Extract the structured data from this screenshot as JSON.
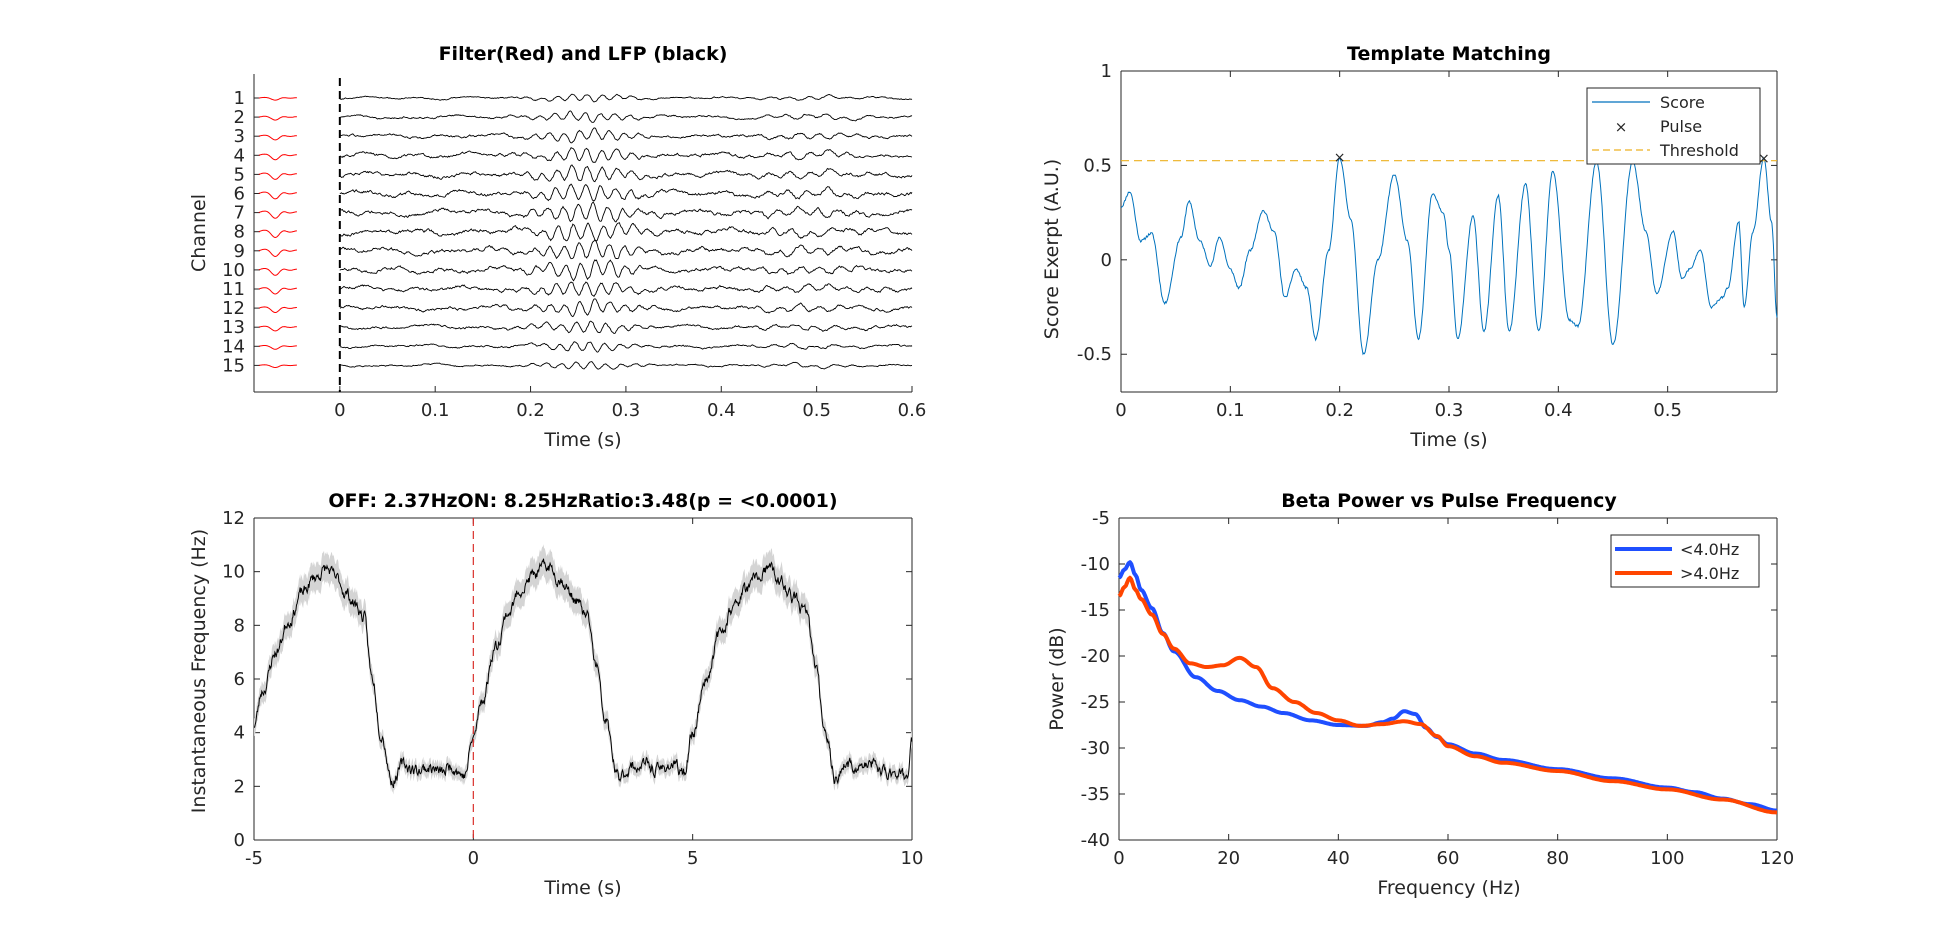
{
  "figure": {
    "background": "#ffffff",
    "axis_color": "#262626"
  },
  "chart_data": [
    {
      "id": "p1",
      "type": "line",
      "title": "Filter(Red) and LFP (black)",
      "xlabel": "Time (s)",
      "ylabel": "Channel",
      "xlim": [
        -0.09,
        0.6
      ],
      "xticks": [
        0,
        0.1,
        0.2,
        0.3,
        0.4,
        0.5,
        0.6
      ],
      "xtick_labels": [
        "0",
        "0.1",
        "0.2",
        "0.3",
        "0.4",
        "0.5",
        "0.6"
      ],
      "channels": [
        "1",
        "2",
        "3",
        "4",
        "5",
        "6",
        "7",
        "8",
        "9",
        "10",
        "11",
        "12",
        "13",
        "14",
        "15"
      ],
      "filter_color": "#ff0000",
      "lfp_color": "#000000",
      "stim_line_x": 0,
      "filter_span": [
        -0.085,
        -0.045
      ],
      "lfp_span": [
        0.0,
        0.6
      ],
      "grid": false
    },
    {
      "id": "p2",
      "type": "line",
      "title": "Template Matching",
      "xlabel": "Time (s)",
      "ylabel": "Score Exerpt (A.U.)",
      "xlim": [
        0,
        0.6
      ],
      "ylim": [
        -0.7,
        1
      ],
      "xticks": [
        0,
        0.1,
        0.2,
        0.3,
        0.4,
        0.5
      ],
      "xtick_labels": [
        "0",
        "0.1",
        "0.2",
        "0.3",
        "0.4",
        "0.5"
      ],
      "yticks": [
        -0.5,
        0,
        0.5,
        1
      ],
      "ytick_labels": [
        "-0.5",
        "0",
        "0.5",
        "1"
      ],
      "series": [
        {
          "name": "Score",
          "color": "#0072bd",
          "style": "line"
        },
        {
          "name": "Pulse",
          "color": "#ff0000",
          "style": "x-marker",
          "x": [
            0.2,
            0.588
          ],
          "y": [
            0.545,
            0.54
          ]
        },
        {
          "name": "Threshold",
          "color": "#edb120",
          "style": "dashed",
          "value": 0.525
        }
      ],
      "score_knots": [
        [
          0,
          0.28
        ],
        [
          0.008,
          0.36
        ],
        [
          0.018,
          0.1
        ],
        [
          0.028,
          0.14
        ],
        [
          0.04,
          -0.23
        ],
        [
          0.055,
          0.12
        ],
        [
          0.062,
          0.31
        ],
        [
          0.072,
          0.1
        ],
        [
          0.082,
          -0.03
        ],
        [
          0.09,
          0.12
        ],
        [
          0.1,
          -0.05
        ],
        [
          0.108,
          -0.15
        ],
        [
          0.118,
          0.05
        ],
        [
          0.13,
          0.26
        ],
        [
          0.14,
          0.15
        ],
        [
          0.15,
          -0.2
        ],
        [
          0.16,
          -0.05
        ],
        [
          0.17,
          -0.15
        ],
        [
          0.178,
          -0.42
        ],
        [
          0.19,
          0.05
        ],
        [
          0.2,
          0.54
        ],
        [
          0.21,
          0.22
        ],
        [
          0.222,
          -0.5
        ],
        [
          0.235,
          0.0
        ],
        [
          0.25,
          0.45
        ],
        [
          0.262,
          0.1
        ],
        [
          0.272,
          -0.42
        ],
        [
          0.285,
          0.35
        ],
        [
          0.295,
          0.25
        ],
        [
          0.3,
          0.05
        ],
        [
          0.308,
          -0.42
        ],
        [
          0.322,
          0.23
        ],
        [
          0.332,
          -0.38
        ],
        [
          0.345,
          0.34
        ],
        [
          0.355,
          -0.38
        ],
        [
          0.37,
          0.4
        ],
        [
          0.382,
          -0.38
        ],
        [
          0.395,
          0.47
        ],
        [
          0.41,
          -0.32
        ],
        [
          0.418,
          -0.35
        ],
        [
          0.435,
          0.52
        ],
        [
          0.45,
          -0.45
        ],
        [
          0.468,
          0.52
        ],
        [
          0.48,
          0.15
        ],
        [
          0.49,
          -0.18
        ],
        [
          0.505,
          0.15
        ],
        [
          0.513,
          -0.1
        ],
        [
          0.52,
          -0.05
        ],
        [
          0.53,
          0.05
        ],
        [
          0.54,
          -0.25
        ],
        [
          0.55,
          -0.2
        ],
        [
          0.555,
          -0.15
        ],
        [
          0.565,
          0.2
        ],
        [
          0.57,
          -0.25
        ],
        [
          0.578,
          0.15
        ],
        [
          0.588,
          0.54
        ],
        [
          0.595,
          0.2
        ],
        [
          0.6,
          -0.3
        ]
      ],
      "legend_position": "top-right",
      "grid": false
    },
    {
      "id": "p3",
      "type": "line",
      "title": "OFF: 2.37HzON: 8.25HzRatio:3.48(p = <0.0001)",
      "xlabel": "Time (s)",
      "ylabel": "Instantaneous Frequency (Hz)",
      "xlim": [
        -5,
        10
      ],
      "ylim": [
        0,
        12
      ],
      "xticks": [
        -5,
        0,
        5,
        10
      ],
      "xtick_labels": [
        "-5",
        "0",
        "5",
        "10"
      ],
      "yticks": [
        0,
        2,
        4,
        6,
        8,
        10,
        12
      ],
      "ytick_labels": [
        "0",
        "2",
        "4",
        "6",
        "8",
        "10",
        "12"
      ],
      "line_color": "#000000",
      "band_color": "#d4d4d4",
      "onset_line_x": 0,
      "onset_line_color": "#d9302b",
      "mean_knots": [
        [
          -5,
          4.3
        ],
        [
          -4.8,
          5.6
        ],
        [
          -4.5,
          7.0
        ],
        [
          -4.2,
          8.2
        ],
        [
          -3.9,
          9.2
        ],
        [
          -3.6,
          9.8
        ],
        [
          -3.35,
          10.1
        ],
        [
          -3.1,
          9.7
        ],
        [
          -2.9,
          9.2
        ],
        [
          -2.7,
          8.8
        ],
        [
          -2.5,
          8.3
        ],
        [
          -2.3,
          6.0
        ],
        [
          -2.1,
          4.0
        ],
        [
          -1.85,
          2.2
        ],
        [
          -1.6,
          2.8
        ],
        [
          -1.3,
          2.6
        ],
        [
          -1.0,
          2.7
        ],
        [
          -0.7,
          2.5
        ],
        [
          -0.5,
          2.8
        ],
        [
          -0.2,
          2.4
        ],
        [
          0,
          3.8
        ],
        [
          0.2,
          5.2
        ],
        [
          0.5,
          7.2
        ],
        [
          0.8,
          8.5
        ],
        [
          1.1,
          9.4
        ],
        [
          1.4,
          9.9
        ],
        [
          1.7,
          10.2
        ],
        [
          2.0,
          9.7
        ],
        [
          2.3,
          9.0
        ],
        [
          2.6,
          8.3
        ],
        [
          2.8,
          6.5
        ],
        [
          3.0,
          4.5
        ],
        [
          3.3,
          2.3
        ],
        [
          3.6,
          2.7
        ],
        [
          3.9,
          2.8
        ],
        [
          4.2,
          2.6
        ],
        [
          4.5,
          2.8
        ],
        [
          4.8,
          2.5
        ],
        [
          5.0,
          4.0
        ],
        [
          5.3,
          6.0
        ],
        [
          5.6,
          7.6
        ],
        [
          5.9,
          8.6
        ],
        [
          6.2,
          9.3
        ],
        [
          6.5,
          9.8
        ],
        [
          6.75,
          10.1
        ],
        [
          7.0,
          9.6
        ],
        [
          7.3,
          9.0
        ],
        [
          7.6,
          8.4
        ],
        [
          7.8,
          6.5
        ],
        [
          8.0,
          4.3
        ],
        [
          8.25,
          2.3
        ],
        [
          8.5,
          2.8
        ],
        [
          8.8,
          2.7
        ],
        [
          9.1,
          2.8
        ],
        [
          9.4,
          2.5
        ],
        [
          9.7,
          2.6
        ],
        [
          9.9,
          2.3
        ],
        [
          10.0,
          3.6
        ]
      ],
      "grid": false
    },
    {
      "id": "p4",
      "type": "line",
      "title": "Beta Power vs Pulse Frequency",
      "xlabel": "Frequency (Hz)",
      "ylabel": "Power (dB)",
      "xlim": [
        0,
        120
      ],
      "ylim": [
        -40,
        -5
      ],
      "xticks": [
        0,
        20,
        40,
        60,
        80,
        100,
        120
      ],
      "xtick_labels": [
        "0",
        "20",
        "40",
        "60",
        "80",
        "100",
        "120"
      ],
      "yticks": [
        -40,
        -35,
        -30,
        -25,
        -20,
        -15,
        -10,
        -5
      ],
      "ytick_labels": [
        "-40",
        "-35",
        "-30",
        "-25",
        "-20",
        "-15",
        "-10",
        "-5"
      ],
      "series": [
        {
          "name": "<4.0Hz",
          "color": "#1f4fff",
          "x": [
            0,
            1,
            2,
            3,
            4,
            6,
            8,
            10,
            14,
            18,
            22,
            26,
            30,
            35,
            40,
            45,
            48,
            50,
            52,
            54,
            56,
            58,
            60,
            65,
            70,
            80,
            90,
            100,
            105,
            110,
            115,
            120
          ],
          "y": [
            -11.5,
            -10.6,
            -9.8,
            -11.2,
            -12.8,
            -14.8,
            -17.5,
            -19.5,
            -22.3,
            -23.8,
            -24.8,
            -25.5,
            -26.2,
            -27.0,
            -27.5,
            -27.6,
            -27.2,
            -26.8,
            -26.0,
            -26.3,
            -27.8,
            -28.8,
            -29.6,
            -30.6,
            -31.3,
            -32.3,
            -33.3,
            -34.3,
            -34.8,
            -35.5,
            -36.1,
            -36.8
          ]
        },
        {
          "name": ">4.0Hz",
          "color": "#ff4500",
          "x": [
            0,
            1,
            2,
            3,
            4,
            6,
            8,
            10,
            13,
            16,
            19,
            22,
            25,
            28,
            32,
            36,
            40,
            44,
            48,
            52,
            55,
            58,
            60,
            65,
            70,
            80,
            90,
            100,
            110,
            120
          ],
          "y": [
            -13.5,
            -12.5,
            -11.5,
            -12.8,
            -13.8,
            -15.5,
            -17.6,
            -19.2,
            -20.8,
            -21.2,
            -21.0,
            -20.2,
            -21.2,
            -23.5,
            -25.0,
            -26.2,
            -27.0,
            -27.6,
            -27.4,
            -27.1,
            -27.4,
            -28.7,
            -29.8,
            -30.9,
            -31.6,
            -32.5,
            -33.6,
            -34.5,
            -35.6,
            -37.0
          ]
        }
      ],
      "legend_position": "top-right",
      "grid": false
    }
  ]
}
